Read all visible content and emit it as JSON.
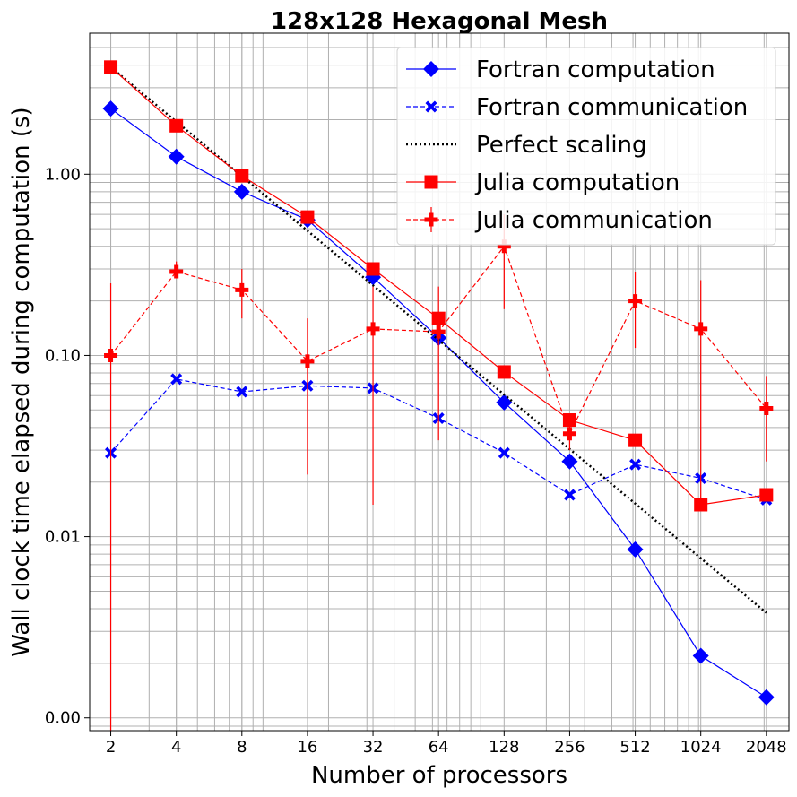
{
  "chart_data": {
    "type": "line",
    "title": "128x128 Hexagonal Mesh",
    "xlabel": "Number of processors",
    "ylabel": "Wall clock time elapsed during computation (s)",
    "x_scale": "log2",
    "y_scale": "log10",
    "xlim": [
      1.6,
      2600
    ],
    "ylim": [
      0.00085,
      6.0
    ],
    "grid": true,
    "legend_position": "top-right",
    "x_ticks": [
      2,
      4,
      8,
      16,
      32,
      64,
      128,
      256,
      512,
      1024,
      2048
    ],
    "x_tick_labels": [
      "2",
      "4",
      "8",
      "16",
      "32",
      "64",
      "128",
      "256",
      "512",
      "1024",
      "2048"
    ],
    "y_ticks": [
      0.001,
      0.01,
      0.1,
      1.0
    ],
    "y_tick_labels": [
      "0.00",
      "0.01",
      "0.10",
      "1.00"
    ],
    "series": [
      {
        "name": "Fortran computation",
        "color": "#0000ff",
        "line": "solid",
        "marker": "diamond",
        "x": [
          2,
          4,
          8,
          16,
          32,
          64,
          128,
          256,
          512,
          1024,
          2048
        ],
        "y": [
          2.3,
          1.25,
          0.8,
          0.56,
          0.27,
          0.125,
          0.055,
          0.026,
          0.0085,
          0.0022,
          0.0013
        ]
      },
      {
        "name": "Fortran communication",
        "color": "#0000ff",
        "line": "dashed",
        "marker": "x-filled",
        "x": [
          2,
          4,
          8,
          16,
          32,
          64,
          128,
          256,
          512,
          1024,
          2048
        ],
        "y": [
          0.029,
          0.074,
          0.063,
          0.068,
          0.066,
          0.045,
          0.029,
          0.017,
          0.025,
          0.021,
          0.016
        ]
      },
      {
        "name": "Perfect scaling",
        "color": "#000000",
        "line": "dotted",
        "marker": "none",
        "x": [
          2,
          2048
        ],
        "y": [
          3.9,
          0.0038
        ]
      },
      {
        "name": "Julia computation",
        "color": "#ff0000",
        "line": "solid",
        "marker": "square",
        "x": [
          2,
          4,
          8,
          16,
          32,
          64,
          128,
          256,
          512,
          1024,
          2048
        ],
        "y": [
          3.9,
          1.85,
          0.98,
          0.58,
          0.3,
          0.16,
          0.081,
          0.044,
          0.034,
          0.015,
          0.017
        ]
      },
      {
        "name": "Julia communication",
        "color": "#ff0000",
        "line": "dashed",
        "marker": "plus-filled",
        "x": [
          2,
          4,
          8,
          16,
          32,
          64,
          128,
          256,
          512,
          1024,
          2048
        ],
        "y": [
          0.1,
          0.29,
          0.23,
          0.093,
          0.14,
          0.135,
          0.4,
          0.037,
          0.2,
          0.14,
          0.051
        ],
        "yerr_low": [
          0.0008,
          0.27,
          0.16,
          0.022,
          0.015,
          0.034,
          0.18,
          0.03,
          0.11,
          0.016,
          0.026
        ],
        "yerr_high": [
          0.25,
          0.33,
          0.3,
          0.16,
          0.24,
          0.24,
          0.6,
          0.046,
          0.29,
          0.26,
          0.077
        ]
      }
    ]
  }
}
